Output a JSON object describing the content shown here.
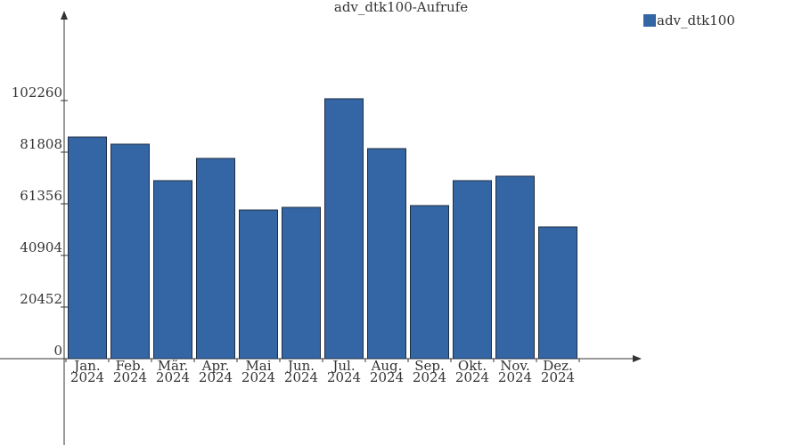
{
  "chart_data": {
    "type": "bar",
    "title": "adv_dtk100-Aufrufe",
    "categories": [
      [
        "Jan.",
        "2024"
      ],
      [
        "Feb.",
        "2024"
      ],
      [
        "Mär.",
        "2024"
      ],
      [
        "Apr.",
        "2024"
      ],
      [
        "Mai",
        "2024"
      ],
      [
        "Jun.",
        "2024"
      ],
      [
        "Jul.",
        "2024"
      ],
      [
        "Aug.",
        "2024"
      ],
      [
        "Sep.",
        "2024"
      ],
      [
        "Okt.",
        "2024"
      ],
      [
        "Nov.",
        "2024"
      ],
      [
        "Dez.",
        "2024"
      ]
    ],
    "series": [
      {
        "name": "adv_dtk100",
        "color": "#3465a4",
        "values": [
          87800,
          84980,
          70530,
          79340,
          58890,
          59950,
          102970,
          83220,
          60650,
          70530,
          72290,
          52190
        ]
      }
    ],
    "ylim": [
      0,
      136800
    ],
    "yticks": [
      0,
      20452,
      40904,
      61356,
      81808,
      102260
    ],
    "legend": "top-right"
  }
}
